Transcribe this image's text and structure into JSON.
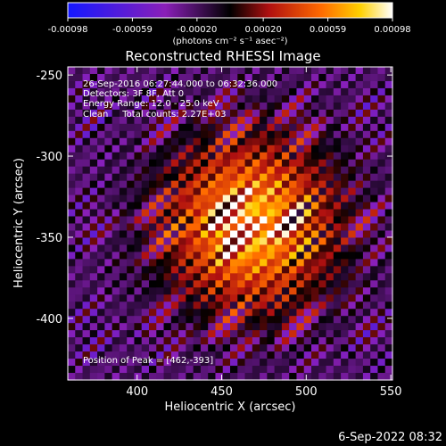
{
  "colorbar": {
    "ticks": [
      "-0.00098",
      "-0.00059",
      "-0.00020",
      "0.00020",
      "0.00059",
      "0.00098"
    ],
    "tick_values": [
      -0.00098,
      -0.00059,
      -0.0002,
      0.0002,
      0.00059,
      0.00098
    ],
    "range": [
      -0.00098,
      0.00098
    ],
    "unit_label": "(photons cm⁻² s⁻¹ asec⁻²)",
    "colormap": "blue-purple-red-orange-yellow-white"
  },
  "chart_data": {
    "type": "heatmap",
    "title": "Reconstructed RHESSI Image",
    "xlabel": "Heliocentric X (arcsec)",
    "ylabel": "Heliocentric Y (arcsec)",
    "xlim": [
      359,
      551
    ],
    "ylim": [
      -438,
      -245
    ],
    "xticks": [
      400,
      450,
      500,
      550
    ],
    "yticks": [
      -250,
      -300,
      -350,
      -400
    ],
    "xtick_labels": [
      "400",
      "450",
      "500",
      "550"
    ],
    "ytick_labels": [
      "-250",
      "-300",
      "-350",
      "-400"
    ],
    "peak": [
      462,
      -393
    ],
    "annotations": {
      "time_range": "26-Sep-2016 06:27:44.000 to 06:32:36.000",
      "detectors": "Detectors: 3F 8F, Att 0",
      "energy": "Energy Range: 12.0 - 25.0 keV",
      "algorithm": "Clean     Total counts: 2.27E+03",
      "peak_text": "Position of Peak = [462,-393]"
    }
  },
  "footer": {
    "timestamp": "6-Sep-2022 08:32"
  }
}
